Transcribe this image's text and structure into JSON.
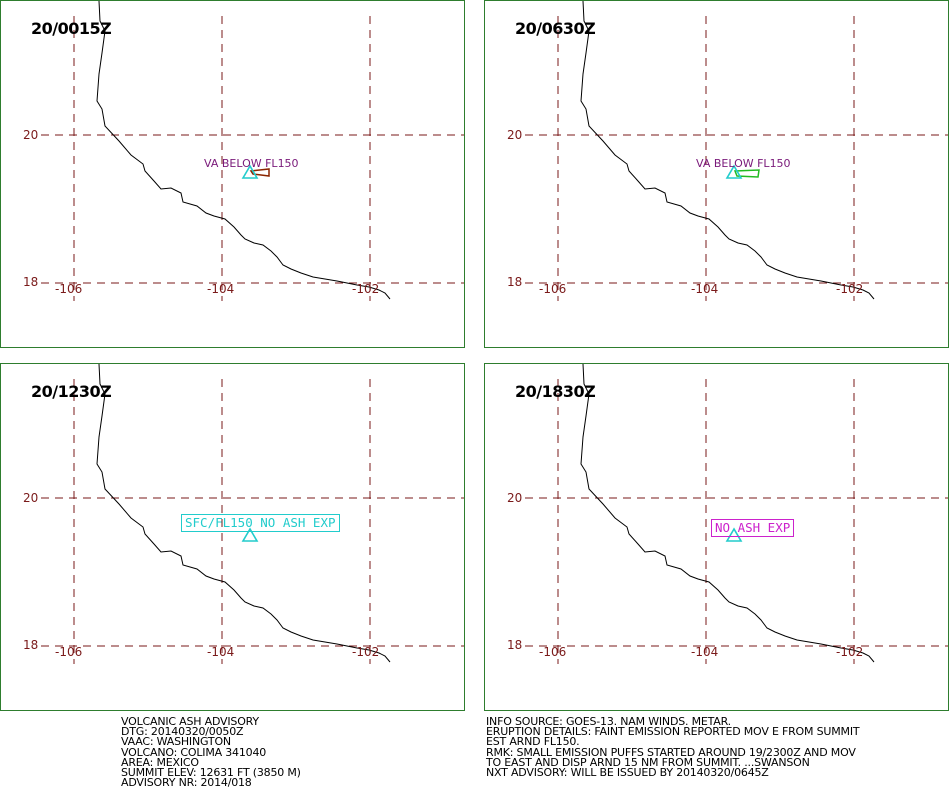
{
  "colors": {
    "panel_border": "#2e7d2e",
    "grid": "#7a1a1a",
    "coast": "#000000",
    "volcano_marker": "#22cccc",
    "va_label": "#7a1a7a",
    "ash_poly_1": "#8b2500",
    "ash_poly_2": "#22bb22",
    "sfc_box": "#22cccc",
    "no_ash_box": "#cc22cc"
  },
  "panels": [
    {
      "time": "20/0015Z",
      "lat_labels": [
        "20",
        "18"
      ],
      "lon_labels": [
        "-106",
        "-104",
        "-102"
      ],
      "forecast_label": "VA BELOW FL150",
      "marker_icon": "triangle-volcano-icon"
    },
    {
      "time": "20/0630Z",
      "lat_labels": [
        "20",
        "18"
      ],
      "lon_labels": [
        "-106",
        "-104",
        "-102"
      ],
      "forecast_label": "VA BELOW FL150",
      "marker_icon": "triangle-volcano-icon"
    },
    {
      "time": "20/1230Z",
      "lat_labels": [
        "20",
        "18"
      ],
      "lon_labels": [
        "-106",
        "-104",
        "-102"
      ],
      "forecast_label": "SFC/FL150 NO ASH EXP",
      "marker_icon": "triangle-volcano-icon"
    },
    {
      "time": "20/1830Z",
      "lat_labels": [
        "20",
        "18"
      ],
      "lon_labels": [
        "-106",
        "-104",
        "-102"
      ],
      "forecast_label": "NO ASH EXP",
      "marker_icon": "triangle-volcano-icon"
    }
  ],
  "advisory_left": "VOLCANIC ASH ADVISORY\nDTG: 20140320/0050Z\nVAAC: WASHINGTON\nVOLCANO: COLIMA 341040\nAREA: MEXICO\nSUMMIT ELEV: 12631 FT (3850 M)\nADVISORY NR: 2014/018",
  "advisory_right": "INFO SOURCE: GOES-13. NAM WINDS. METAR.\nERUPTION DETAILS: FAINT EMISSION REPORTED MOV E FROM SUMMIT\nEST ARND FL150.\nRMK: SMALL EMISSION PUFFS STARTED AROUND 19/2300Z AND MOV\nTO EAST AND DISP ARND 15 NM FROM SUMMIT. ...SWANSON\nNXT ADVISORY: WILL BE ISSUED BY 20140320/0645Z"
}
